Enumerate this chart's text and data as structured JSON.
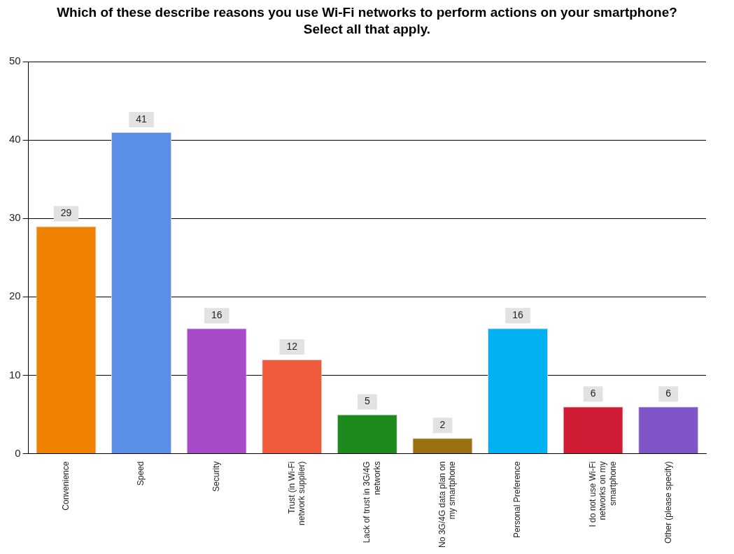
{
  "chart_data": {
    "type": "bar",
    "title": "Which of these describe reasons you use Wi-Fi networks to perform actions on your smartphone? Select all that apply.",
    "categories": [
      "Convenience",
      "Speed",
      "Security",
      "Trust (in Wi-Fi network supplier)",
      "Lack of trust in 3G/4G networks",
      "No 3G/4G data plan on my smartphone",
      "Personal Preference",
      "I do not use Wi-Fi networks on my smartphone",
      "Other (please specify)"
    ],
    "values": [
      29,
      41,
      16,
      12,
      5,
      2,
      16,
      6,
      6
    ],
    "colors": [
      "#ef8200",
      "#5b8ee6",
      "#a84bc9",
      "#f05a3c",
      "#1e8a1e",
      "#9a7010",
      "#00b0f0",
      "#d01c34",
      "#7f55c8"
    ],
    "ylim": [
      0,
      50
    ],
    "yticks": [
      0,
      10,
      20,
      30,
      40,
      50
    ],
    "grid": "y",
    "legend": false,
    "data_labels": true
  }
}
